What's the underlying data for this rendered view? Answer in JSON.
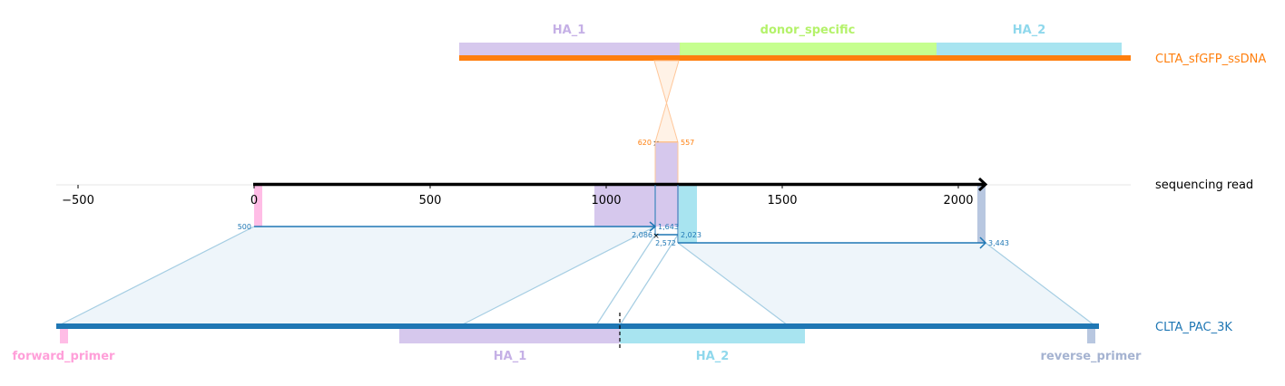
{
  "colors": {
    "ha1": "#d6c8ed",
    "ha1_text": "#c5b0e6",
    "donor": "#c6ff8f",
    "donor_text": "#b4f26a",
    "ha2": "#a8e4f0",
    "ha2_text": "#8fd8ec",
    "forward_primer": "#ffbde6",
    "forward_primer_text": "#ff9fd9",
    "reverse_primer": "#b8c7e0",
    "reverse_primer_text": "#a5b3d1",
    "donor_track": "#ff7f0e",
    "ref_track": "#1f77b4",
    "read": "#000000",
    "crossing": "#ffd8b8",
    "alignment_fill": "#eef5fa",
    "alignment_line": "#a6cee3"
  },
  "donor": {
    "name": "CLTA_sfGFP_ssDNA",
    "features": [
      "HA_1",
      "donor_specific",
      "HA_2"
    ]
  },
  "read": {
    "name": "sequencing read",
    "axis": {
      "ticks": [
        -500,
        0,
        500,
        1000,
        1500,
        2000
      ],
      "tick_labels": [
        "−500",
        "0",
        "500",
        "1000",
        "1500",
        "2000"
      ]
    },
    "features": [
      "HA_1",
      "HA_2"
    ]
  },
  "reference": {
    "name": "CLTA_PAC_3K",
    "features": [
      "forward_primer",
      "HA_1",
      "HA_2",
      "reverse_primer"
    ]
  },
  "annotations": {
    "donor_pos_a": "620",
    "donor_pos_b": "557",
    "ref_pos_a": "500",
    "ref_pos_b": "1,643",
    "ref_pos_c": "2,086",
    "ref_pos_d": "2,023",
    "ref_pos_e": "2,572",
    "ref_pos_f": "3,443"
  }
}
